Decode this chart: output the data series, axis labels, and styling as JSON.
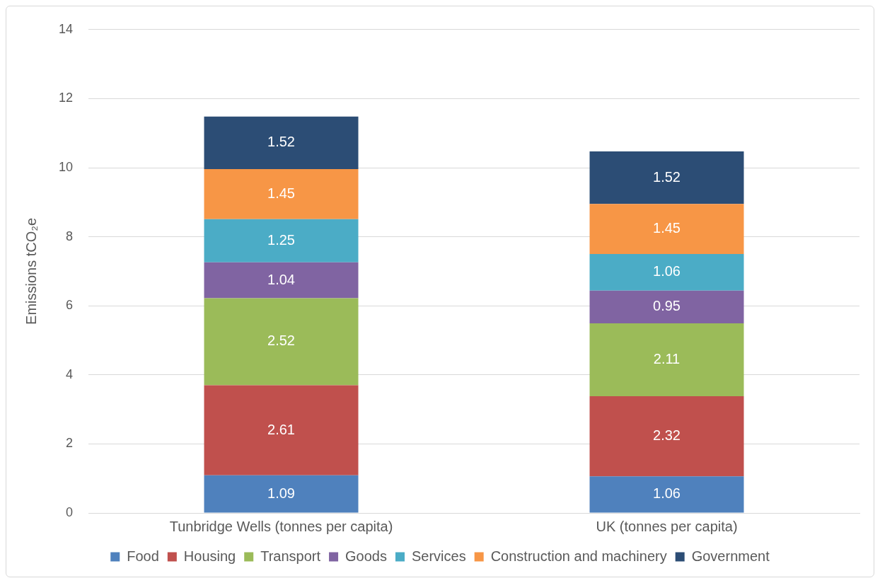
{
  "chart_data": {
    "type": "bar",
    "stacked": true,
    "ylabel": "Emissions tCO₂e",
    "categories": [
      "Tunbridge Wells (tonnes per capita)",
      "UK (tonnes per capita)"
    ],
    "series": [
      {
        "name": "Food",
        "color": "#4f81bd",
        "values": [
          1.09,
          1.06
        ]
      },
      {
        "name": "Housing",
        "color": "#c0504d",
        "values": [
          2.61,
          2.32
        ]
      },
      {
        "name": "Transport",
        "color": "#9bbb59",
        "values": [
          2.52,
          2.11
        ]
      },
      {
        "name": "Goods",
        "color": "#8064a2",
        "values": [
          1.04,
          0.95
        ]
      },
      {
        "name": "Services",
        "color": "#4bacc6",
        "values": [
          1.25,
          1.06
        ]
      },
      {
        "name": "Construction and machinery",
        "color": "#f79646",
        "values": [
          1.45,
          1.45
        ]
      },
      {
        "name": "Government",
        "color": "#2c4d75",
        "values": [
          1.52,
          1.52
        ]
      }
    ],
    "ylim": [
      0,
      14
    ],
    "yticks": [
      0,
      2,
      4,
      6,
      8,
      10,
      12,
      14
    ],
    "grid": "y",
    "legend": "bottom",
    "data_labels": true
  }
}
